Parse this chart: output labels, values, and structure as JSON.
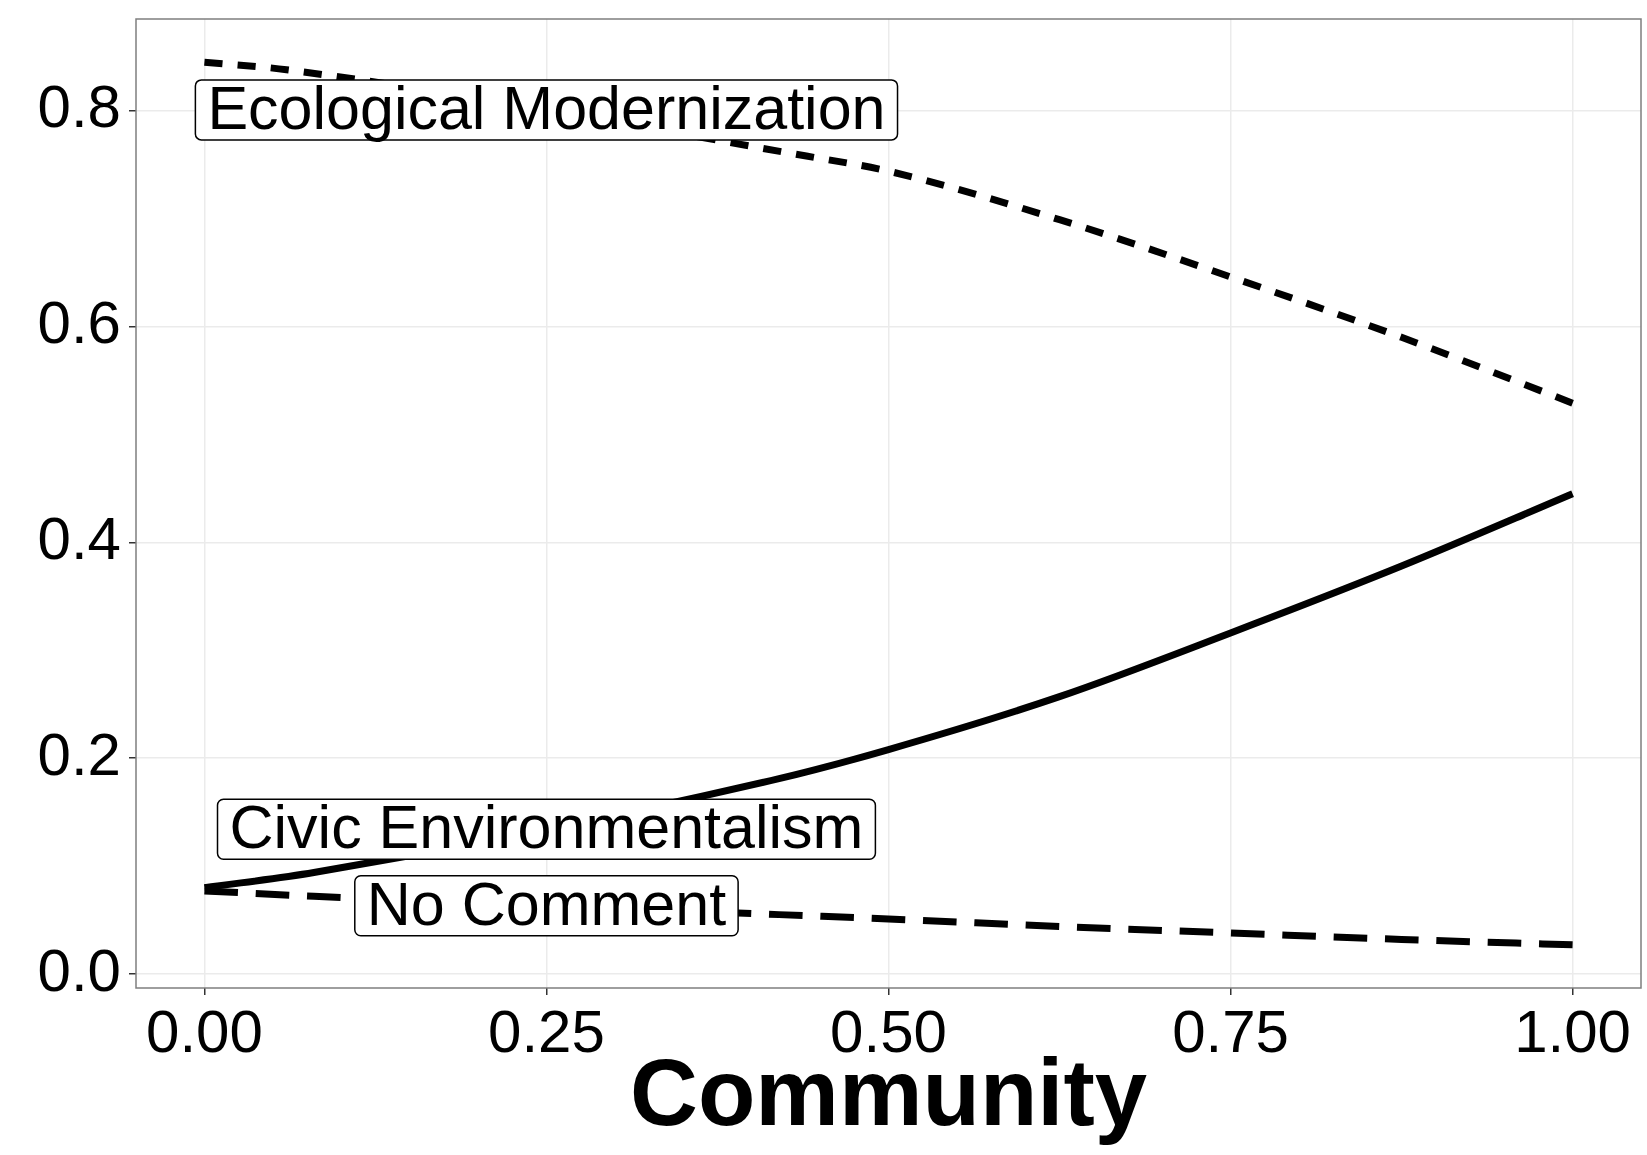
{
  "chart_data": {
    "type": "line",
    "xlabel": "Community",
    "series": [
      {
        "name": "Ecological Modernization",
        "color": "#000000",
        "line_style": "dotted",
        "x": [
          0,
          0.06,
          0.44,
          0.5,
          0.625,
          0.75,
          0.875,
          1
        ],
        "values": [
          0.845,
          0.838,
          0.758,
          0.744,
          0.699,
          0.646,
          0.59,
          0.529
        ]
      },
      {
        "name": "Civic Environmentalism",
        "color": "#000000",
        "line_style": "solid",
        "x": [
          0,
          0.08,
          0.42,
          0.5,
          0.625,
          0.75,
          0.875,
          1
        ],
        "values": [
          0.08,
          0.094,
          0.181,
          0.208,
          0.257,
          0.316,
          0.378,
          0.445
        ]
      },
      {
        "name": "No Comment",
        "color": "#000000",
        "line_style": "dashed",
        "x": [
          0,
          0.08,
          0.42,
          0.5,
          0.625,
          0.75,
          0.875,
          1
        ],
        "values": [
          0.077,
          0.072,
          0.055,
          0.051,
          0.044,
          0.038,
          0.032,
          0.027
        ]
      }
    ],
    "xlim": [
      -0.05,
      1.05
    ],
    "ylim": [
      -0.013,
      0.885
    ],
    "xticks": [
      {
        "value": 0,
        "label": "0.00"
      },
      0.25,
      {
        "value": 0.5,
        "label": "0.50"
      },
      0.75,
      {
        "value": 1,
        "label": "1.00"
      }
    ],
    "yticks": [
      {
        "value": 0,
        "label": "0.0"
      },
      0.2,
      0.4,
      0.6,
      0.8
    ],
    "grid": true
  }
}
